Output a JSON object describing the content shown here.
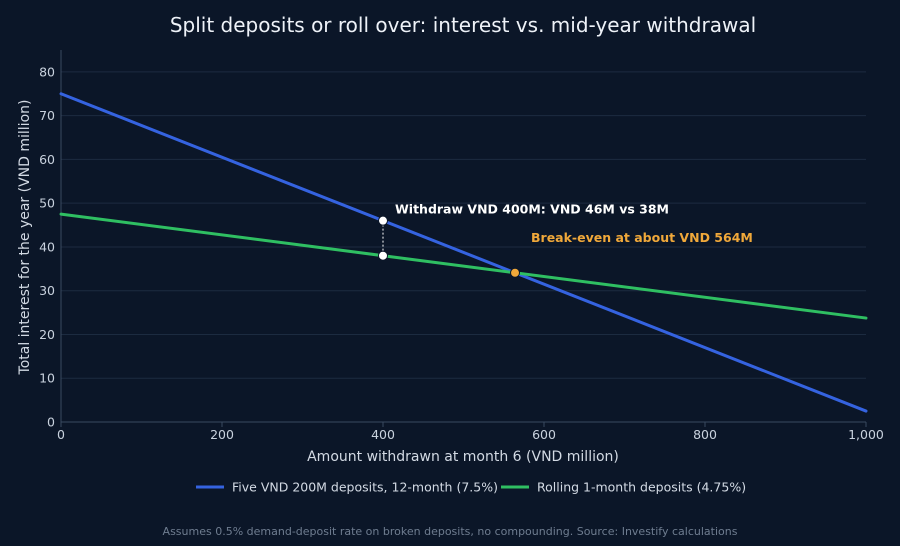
{
  "chart_data": {
    "type": "line",
    "title": "Split deposits or roll over: interest vs. mid-year withdrawal",
    "xlabel": "Amount withdrawn at month 6 (VND million)",
    "ylabel": "Total interest for the year (VND million)",
    "xlim": [
      0,
      1000
    ],
    "ylim": [
      0,
      85
    ],
    "x_ticks": [
      0,
      200,
      400,
      600,
      800,
      1000
    ],
    "x_tick_labels": [
      "0",
      "200",
      "400",
      "600",
      "800",
      "1,000"
    ],
    "y_ticks": [
      0,
      10,
      20,
      30,
      40,
      50,
      60,
      70,
      80
    ],
    "grid": true,
    "legend_position": "bottom",
    "series": [
      {
        "name": "Five VND 200M deposits, 12-month (7.5%)",
        "color": "#3563e0",
        "x": [
          0,
          1000
        ],
        "y": [
          75,
          2.5
        ]
      },
      {
        "name": "Rolling 1-month deposits (4.75%)",
        "color": "#2fbf62",
        "x": [
          0,
          1000
        ],
        "y": [
          47.5,
          23.75
        ]
      }
    ],
    "annotations": [
      {
        "text": "Withdraw VND 400M: VND 46M vs 38M",
        "x": 400,
        "y_top": 46,
        "y_bottom": 38,
        "color": "#ffffff"
      },
      {
        "text": "Break-even at about VND 564M",
        "x": 564,
        "y": 34.1,
        "color": "#f0a83a"
      }
    ],
    "footnote": "Assumes 0.5% demand-deposit rate on broken deposits, no compounding. Source: Investify calculations"
  }
}
